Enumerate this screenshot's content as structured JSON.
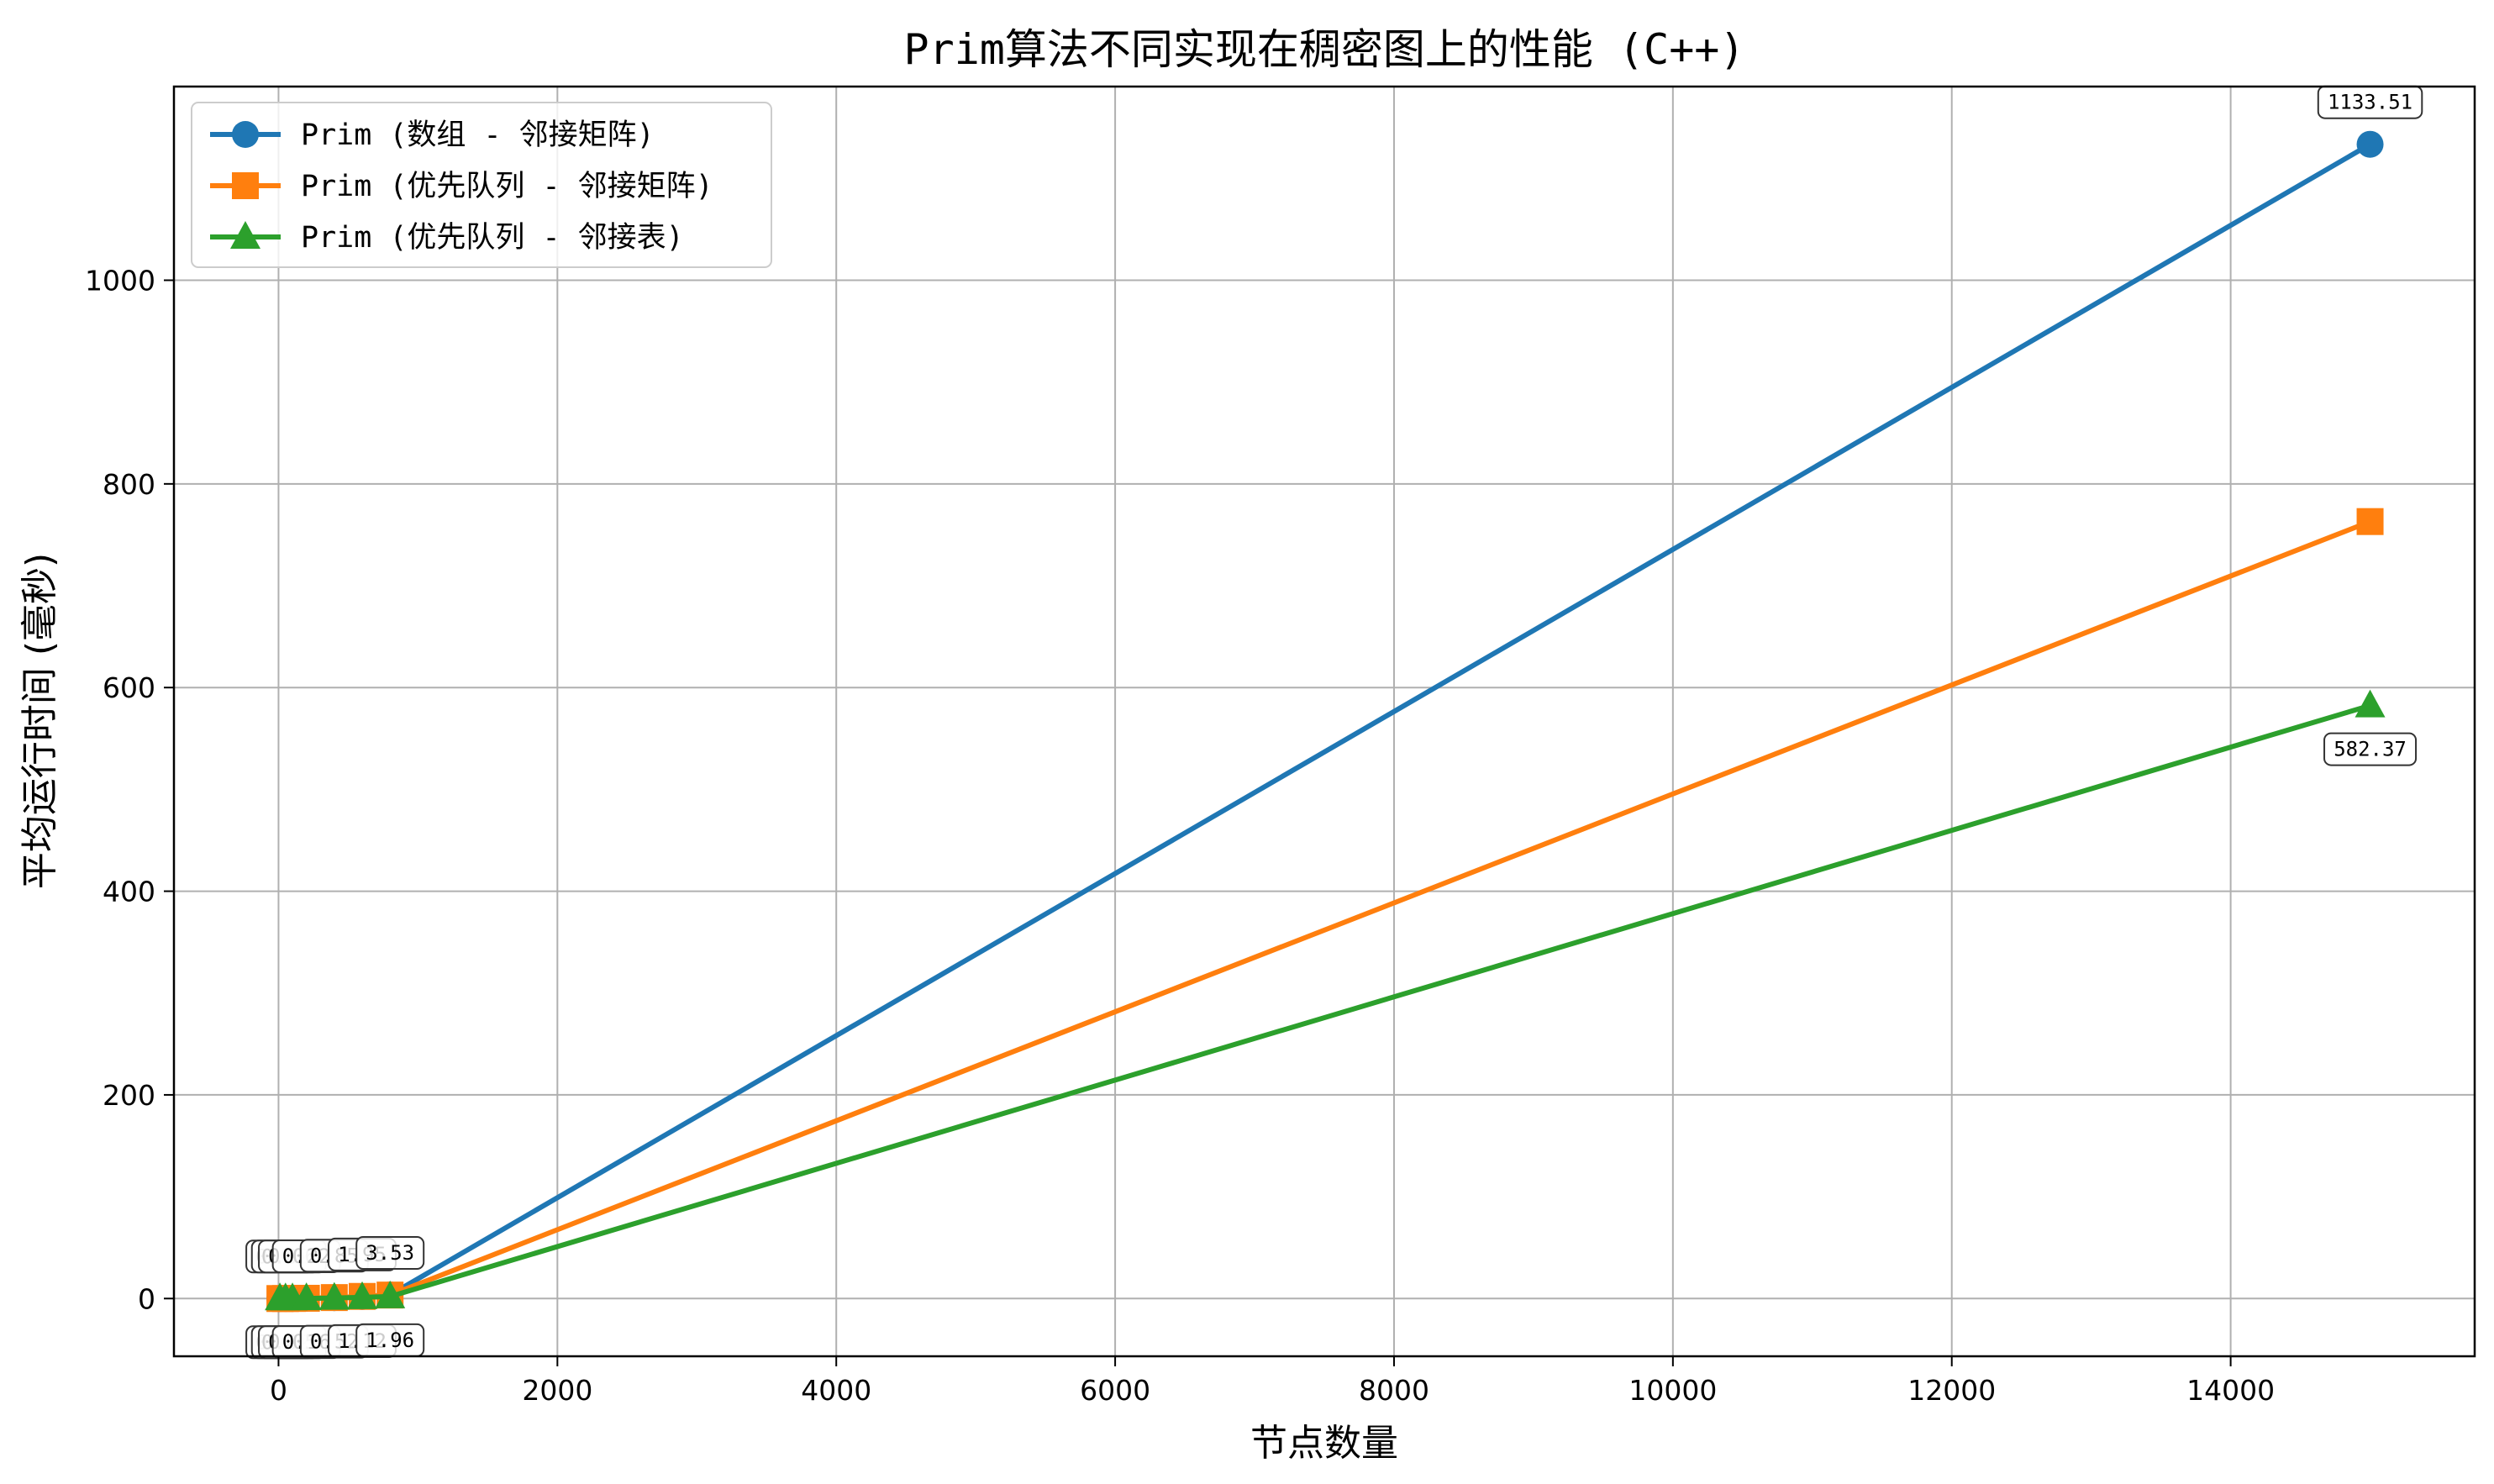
{
  "chart_data": {
    "type": "line",
    "title": "Prim算法不同实现在稠密图上的性能 (C++)",
    "xlabel": "节点数量",
    "ylabel": "平均运行时间 (毫秒)",
    "xlim": [
      -750,
      15750
    ],
    "ylim": [
      -56.7,
      1190.2
    ],
    "xticks": [
      0,
      2000,
      4000,
      6000,
      8000,
      10000,
      12000,
      14000
    ],
    "yticks": [
      0,
      200,
      400,
      600,
      800,
      1000
    ],
    "grid": true,
    "legend_position": "top-left",
    "series": [
      {
        "name": "Prim (数组 - 邻接矩阵)",
        "color": "#1f77b4",
        "marker": "circle",
        "x": [
          10,
          50,
          100,
          200,
          400,
          600,
          800,
          15000
        ],
        "y": [
          0.01,
          0.02,
          0.06,
          0.22,
          0.85,
          1.95,
          3.53,
          1133.51
        ]
      },
      {
        "name": "Prim (优先队列 - 邻接矩阵)",
        "color": "#ff7f0e",
        "marker": "square",
        "x": [
          10,
          50,
          100,
          200,
          400,
          600,
          800,
          15000
        ],
        "y": [
          0.01,
          0.03,
          0.08,
          0.27,
          0.95,
          2.1,
          3.4,
          763.0
        ]
      },
      {
        "name": "Prim (优先队列 - 邻接表)",
        "color": "#2ca02c",
        "marker": "triangle",
        "x": [
          10,
          50,
          100,
          200,
          400,
          600,
          800,
          15000
        ],
        "y": [
          0.01,
          0.02,
          0.05,
          0.16,
          0.52,
          1.12,
          1.96,
          582.37
        ]
      }
    ],
    "annotations": [
      {
        "series": 0,
        "text": "0.01",
        "x": 10,
        "y": 0.01,
        "place": "above"
      },
      {
        "series": 0,
        "text": "0.02",
        "x": 50,
        "y": 0.02,
        "place": "above"
      },
      {
        "series": 0,
        "text": "0.06",
        "x": 100,
        "y": 0.06,
        "place": "above"
      },
      {
        "series": 0,
        "text": "0.22",
        "x": 200,
        "y": 0.22,
        "place": "above"
      },
      {
        "series": 0,
        "text": "0.85",
        "x": 400,
        "y": 0.85,
        "place": "above"
      },
      {
        "series": 0,
        "text": "1.95",
        "x": 600,
        "y": 1.95,
        "place": "above"
      },
      {
        "series": 0,
        "text": "3.53",
        "x": 800,
        "y": 3.53,
        "place": "above"
      },
      {
        "series": 0,
        "text": "1133.51",
        "x": 15000,
        "y": 1133.51,
        "place": "above"
      },
      {
        "series": 2,
        "text": "0.01",
        "x": 10,
        "y": 0.01,
        "place": "below"
      },
      {
        "series": 2,
        "text": "0.02",
        "x": 50,
        "y": 0.02,
        "place": "below"
      },
      {
        "series": 2,
        "text": "0.05",
        "x": 100,
        "y": 0.05,
        "place": "below"
      },
      {
        "series": 2,
        "text": "0.16",
        "x": 200,
        "y": 0.16,
        "place": "below"
      },
      {
        "series": 2,
        "text": "0.52",
        "x": 400,
        "y": 0.52,
        "place": "below"
      },
      {
        "series": 2,
        "text": "1.12",
        "x": 600,
        "y": 1.12,
        "place": "below"
      },
      {
        "series": 2,
        "text": "1.96",
        "x": 800,
        "y": 1.96,
        "place": "below"
      },
      {
        "series": 2,
        "text": "582.37",
        "x": 15000,
        "y": 582.37,
        "place": "below"
      }
    ]
  }
}
